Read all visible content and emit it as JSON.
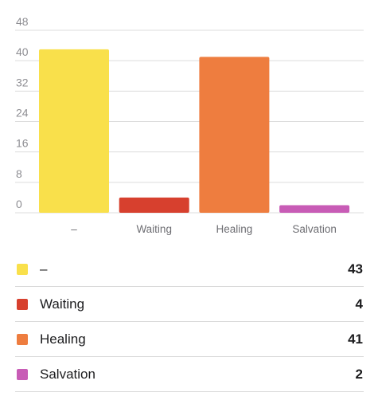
{
  "chart_data": {
    "type": "bar",
    "categories": [
      "–",
      "Waiting",
      "Healing",
      "Salvation"
    ],
    "values": [
      43,
      4,
      41,
      2
    ],
    "colors": [
      "#f9e04b",
      "#d7402e",
      "#ee7d3f",
      "#c85cb6"
    ],
    "yticks": [
      0,
      8,
      16,
      24,
      32,
      40,
      48
    ],
    "ylim": [
      0,
      48
    ],
    "grid": true,
    "legend_position": "bottom"
  },
  "legend": {
    "items": [
      {
        "label": "–",
        "value": "43",
        "color": "#f9e04b"
      },
      {
        "label": "Waiting",
        "value": "4",
        "color": "#d7402e"
      },
      {
        "label": "Healing",
        "value": "41",
        "color": "#ee7d3f"
      },
      {
        "label": "Salvation",
        "value": "2",
        "color": "#c85cb6"
      }
    ]
  }
}
